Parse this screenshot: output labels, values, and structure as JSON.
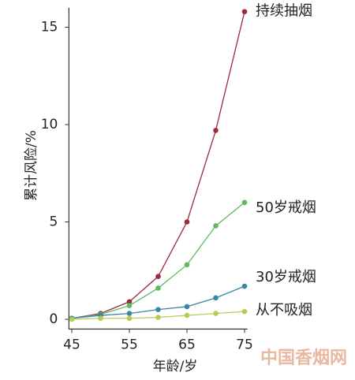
{
  "chart_data": {
    "type": "line",
    "x_label": "年龄/岁",
    "y_label": "累计风险/%",
    "x": [
      45,
      50,
      55,
      60,
      65,
      70,
      75
    ],
    "series": [
      {
        "name": "持续抽烟",
        "color": "#9b2a3a",
        "values": [
          0.05,
          0.3,
          0.9,
          2.2,
          5.0,
          9.7,
          15.8
        ]
      },
      {
        "name": "50岁戒烟",
        "color": "#5dba5d",
        "values": [
          0.05,
          0.25,
          0.7,
          1.6,
          2.8,
          4.8,
          6.0
        ]
      },
      {
        "name": "30岁戒烟",
        "color": "#3a86a8",
        "values": [
          0.05,
          0.2,
          0.3,
          0.5,
          0.65,
          1.1,
          1.7
        ]
      },
      {
        "name": "从不吸烟",
        "color": "#b9cc52",
        "values": [
          0.0,
          0.05,
          0.05,
          0.1,
          0.2,
          0.3,
          0.4
        ]
      }
    ],
    "xlim": [
      44.5,
      75.5
    ],
    "xticks": [
      45,
      55,
      65,
      75
    ],
    "ylim": [
      -0.5,
      16
    ],
    "yticks": [
      0,
      5,
      10,
      15
    ],
    "watermark": "中国香烟网"
  }
}
